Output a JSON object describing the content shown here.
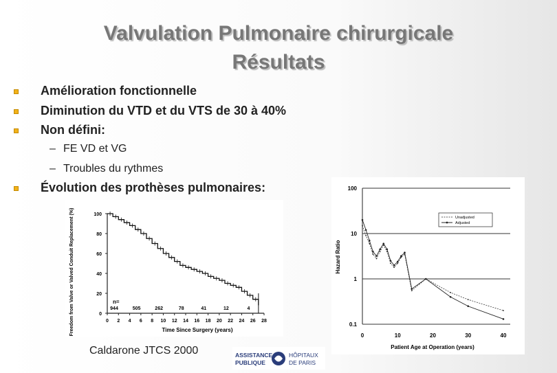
{
  "slide": {
    "title_line1": "Valvulation Pulmonaire chirurgicale",
    "title_line2": "Résultats",
    "bullets": [
      "Amélioration fonctionnelle",
      "Diminution du VTD et du VTS de 30 à 40%",
      "Non défini:",
      "Évolution des prothèses pulmonaires:"
    ],
    "sub_bullets": [
      "FE VD et VG",
      "Troubles du rythmes"
    ],
    "sub_dash": "–",
    "caption": "Caldarone JTCS 2000",
    "logo": {
      "left_line1": "ASSISTANCE",
      "left_line2": "PUBLIQUE",
      "right_line1": "HÔPITAUX",
      "right_line2": "DE PARIS"
    },
    "colors": {
      "bullet": "#f2b21a",
      "title": "#777777"
    }
  },
  "chart_data": [
    {
      "type": "line",
      "xlabel": "Time Since Surgery (years)",
      "ylabel": "Freedom from Valve or Valved Conduit Replacement (%)",
      "xlim": [
        0,
        28
      ],
      "ylim": [
        0,
        100
      ],
      "x_ticks": [
        "0",
        "2",
        "4",
        "6",
        "8",
        "10",
        "12",
        "14",
        "16",
        "18",
        "20",
        "22",
        "24",
        "26",
        "28"
      ],
      "y_ticks": [
        "0",
        "20",
        "40",
        "60",
        "80",
        "100"
      ],
      "grid": false,
      "series": [
        {
          "x": [
            0,
            1,
            2,
            3,
            4,
            5,
            6,
            7,
            8,
            9,
            10,
            11,
            12,
            13,
            14,
            15,
            16,
            17,
            18,
            19,
            20,
            21,
            22,
            23,
            24,
            25,
            26,
            27
          ],
          "y": [
            100,
            97,
            94,
            91,
            88,
            84,
            80,
            75,
            70,
            65,
            60,
            56,
            52,
            48,
            46,
            44,
            42,
            40,
            37,
            35,
            33,
            30,
            28,
            26,
            22,
            18,
            14,
            8
          ]
        }
      ],
      "n_at_risk_label": "n=",
      "n_at_risk": [
        "944",
        "505",
        "262",
        "78",
        "41",
        "12",
        "4"
      ]
    },
    {
      "type": "line",
      "xlabel": "Patient Age at Operation (years)",
      "ylabel": "Hazard Ratio",
      "scale": "log",
      "x_ticks": [
        "0",
        "10",
        "20",
        "30",
        "40"
      ],
      "y_ticks": [
        "0.1",
        "1",
        "10",
        "100"
      ],
      "xlim": [
        0,
        40
      ],
      "ylim": [
        0.1,
        100
      ],
      "legend_position": "top-right",
      "series": [
        {
          "name": "Unadjusted",
          "x": [
            0,
            1,
            2,
            3,
            4,
            5,
            6,
            7,
            8,
            9,
            10,
            11,
            12,
            14,
            18,
            25,
            30,
            40
          ],
          "y": [
            15,
            9,
            6,
            3.5,
            2.8,
            4,
            5.5,
            4,
            2.2,
            1.8,
            2.2,
            3,
            3.5,
            0.55,
            1,
            0.5,
            0.35,
            0.2
          ]
        },
        {
          "name": "Adjusted",
          "x": [
            0,
            1,
            2,
            3,
            4,
            5,
            6,
            7,
            8,
            9,
            10,
            11,
            12,
            14,
            18,
            25,
            30,
            40
          ],
          "y": [
            20,
            12,
            7,
            4,
            3.2,
            4.5,
            6,
            4.5,
            2.5,
            2.0,
            2.4,
            3.2,
            3.8,
            0.6,
            1,
            0.4,
            0.25,
            0.13
          ]
        }
      ]
    }
  ]
}
